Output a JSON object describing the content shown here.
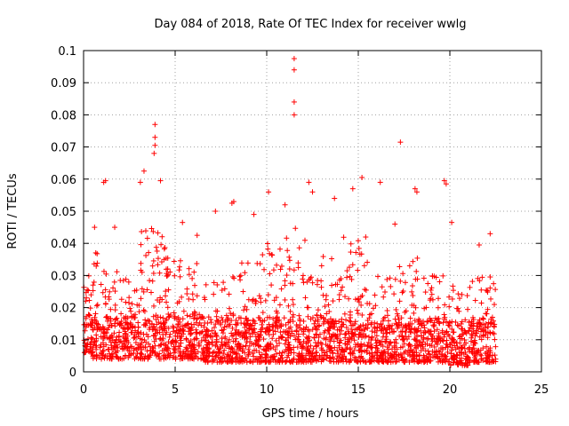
{
  "chart_data": {
    "type": "scatter",
    "title": "Day 084 of 2018, Rate Of TEC Index for receiver wwlg",
    "xlabel": "GPS time / hours",
    "ylabel": "ROTI / TECUs",
    "xlim": [
      0,
      25
    ],
    "ylim": [
      0,
      0.1
    ],
    "x_ticks": [
      "0",
      "5",
      "10",
      "15",
      "20",
      "25"
    ],
    "y_ticks": [
      "0",
      "0.01",
      "0.02",
      "0.03",
      "0.04",
      "0.05",
      "0.06",
      "0.07",
      "0.08",
      "0.09",
      "0.1"
    ],
    "grid": true,
    "marker": "+",
    "series_color": "#ff0000",
    "data_extent": {
      "x_min": 0.0,
      "x_max": 22.5
    },
    "notable_points": [
      {
        "x": 11.5,
        "y": 0.0975
      },
      {
        "x": 11.5,
        "y": 0.094
      },
      {
        "x": 11.5,
        "y": 0.084
      },
      {
        "x": 11.5,
        "y": 0.08
      },
      {
        "x": 3.9,
        "y": 0.077
      },
      {
        "x": 3.9,
        "y": 0.073
      },
      {
        "x": 3.9,
        "y": 0.0705
      },
      {
        "x": 3.85,
        "y": 0.068
      },
      {
        "x": 17.3,
        "y": 0.0715
      },
      {
        "x": 3.3,
        "y": 0.0625
      },
      {
        "x": 3.1,
        "y": 0.059
      },
      {
        "x": 1.2,
        "y": 0.0595
      },
      {
        "x": 1.1,
        "y": 0.059
      },
      {
        "x": 15.2,
        "y": 0.0605
      },
      {
        "x": 19.7,
        "y": 0.0595
      },
      {
        "x": 19.8,
        "y": 0.0585
      },
      {
        "x": 18.1,
        "y": 0.057
      },
      {
        "x": 18.2,
        "y": 0.056
      },
      {
        "x": 8.2,
        "y": 0.053
      },
      {
        "x": 8.1,
        "y": 0.0525
      },
      {
        "x": 12.3,
        "y": 0.059
      },
      {
        "x": 12.5,
        "y": 0.056
      },
      {
        "x": 14.7,
        "y": 0.057
      },
      {
        "x": 10.1,
        "y": 0.056
      },
      {
        "x": 4.2,
        "y": 0.0595
      },
      {
        "x": 16.2,
        "y": 0.059
      },
      {
        "x": 7.2,
        "y": 0.05
      },
      {
        "x": 5.4,
        "y": 0.0465
      },
      {
        "x": 1.7,
        "y": 0.045
      },
      {
        "x": 0.6,
        "y": 0.045
      },
      {
        "x": 20.1,
        "y": 0.0465
      },
      {
        "x": 22.2,
        "y": 0.043
      },
      {
        "x": 21.6,
        "y": 0.0395
      },
      {
        "x": 17.0,
        "y": 0.046
      },
      {
        "x": 6.2,
        "y": 0.0425
      },
      {
        "x": 13.7,
        "y": 0.054
      },
      {
        "x": 11.0,
        "y": 0.052
      },
      {
        "x": 9.3,
        "y": 0.049
      }
    ],
    "envelope": [
      {
        "x0": 0.0,
        "x1": 0.5,
        "lo": 0.006,
        "hi": 0.03
      },
      {
        "x0": 0.5,
        "x1": 1.0,
        "lo": 0.004,
        "hi": 0.04
      },
      {
        "x0": 1.0,
        "x1": 2.0,
        "lo": 0.004,
        "hi": 0.034
      },
      {
        "x0": 2.0,
        "x1": 3.0,
        "lo": 0.004,
        "hi": 0.03
      },
      {
        "x0": 3.0,
        "x1": 4.5,
        "lo": 0.004,
        "hi": 0.045
      },
      {
        "x0": 4.5,
        "x1": 6.5,
        "lo": 0.004,
        "hi": 0.036
      },
      {
        "x0": 6.5,
        "x1": 8.0,
        "lo": 0.003,
        "hi": 0.028
      },
      {
        "x0": 8.0,
        "x1": 9.5,
        "lo": 0.003,
        "hi": 0.034
      },
      {
        "x0": 9.5,
        "x1": 11.0,
        "lo": 0.003,
        "hi": 0.04
      },
      {
        "x0": 11.0,
        "x1": 12.5,
        "lo": 0.003,
        "hi": 0.045
      },
      {
        "x0": 12.5,
        "x1": 14.0,
        "lo": 0.003,
        "hi": 0.036
      },
      {
        "x0": 14.0,
        "x1": 15.5,
        "lo": 0.003,
        "hi": 0.042
      },
      {
        "x0": 15.5,
        "x1": 17.0,
        "lo": 0.003,
        "hi": 0.03
      },
      {
        "x0": 17.0,
        "x1": 18.5,
        "lo": 0.003,
        "hi": 0.038
      },
      {
        "x0": 18.5,
        "x1": 20.0,
        "lo": 0.003,
        "hi": 0.03
      },
      {
        "x0": 20.0,
        "x1": 21.0,
        "lo": 0.002,
        "hi": 0.028
      },
      {
        "x0": 21.0,
        "x1": 22.5,
        "lo": 0.003,
        "hi": 0.03
      }
    ],
    "density_per_hour": 55
  }
}
